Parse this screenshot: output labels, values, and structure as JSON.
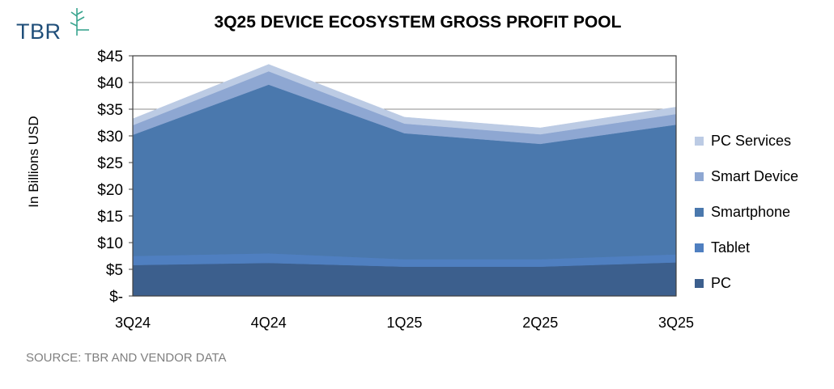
{
  "logo": {
    "text": "TBR",
    "icon": "tbr-plant-logo-icon"
  },
  "chart_data": {
    "type": "area",
    "stacked": true,
    "title": "3Q25 DEVICE ECOSYSTEM GROSS PROFIT POOL",
    "xlabel": "",
    "ylabel": "In Billions USD",
    "ylim": [
      0,
      45
    ],
    "yticks": [
      0,
      5,
      10,
      15,
      20,
      25,
      30,
      35,
      40,
      45
    ],
    "ytick_labels": [
      "$-",
      "$5",
      "$10",
      "$15",
      "$20",
      "$25",
      "$30",
      "$35",
      "$40",
      "$45"
    ],
    "categories": [
      "3Q24",
      "4Q24",
      "1Q25",
      "2Q25",
      "3Q25"
    ],
    "grid": true,
    "legend_position": "right",
    "series": [
      {
        "name": "PC",
        "color": "#3c5f8d",
        "values": [
          5.8,
          6.2,
          5.5,
          5.5,
          6.3
        ]
      },
      {
        "name": "Tablet",
        "color": "#4f7fc0",
        "values": [
          1.7,
          1.8,
          1.4,
          1.4,
          1.5
        ]
      },
      {
        "name": "Smartphone",
        "color": "#4a78ad",
        "values": [
          22.7,
          31.6,
          23.6,
          21.6,
          24.3
        ]
      },
      {
        "name": "Smart Device",
        "color": "#8ea7d2",
        "values": [
          1.8,
          2.5,
          1.8,
          1.8,
          2.0
        ]
      },
      {
        "name": "PC Services",
        "color": "#bccbe4",
        "values": [
          1.2,
          1.3,
          1.2,
          1.2,
          1.3
        ]
      }
    ]
  },
  "source": "SOURCE: TBR AND VENDOR DATA"
}
